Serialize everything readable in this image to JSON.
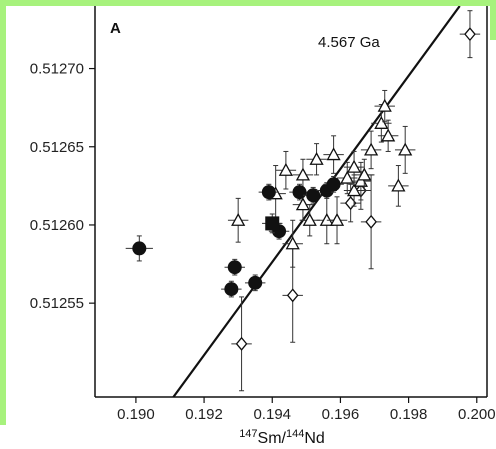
{
  "chart_data": {
    "type": "scatter",
    "panel_label": "A",
    "title": "",
    "xlabel_parts": {
      "sup1": "147",
      "mid": "Sm/",
      "sup2": "144",
      "end": "Nd"
    },
    "xlim": [
      0.1888,
      0.2003
    ],
    "ylim": [
      0.51249,
      0.51274
    ],
    "x_ticks": [
      0.19,
      0.192,
      0.194,
      0.196,
      0.198,
      0.2
    ],
    "x_tick_labels": [
      "0.190",
      "0.192",
      "0.194",
      "0.196",
      "0.198",
      "0.200"
    ],
    "y_ticks": [
      0.51255,
      0.5126,
      0.51265,
      0.5127
    ],
    "y_tick_labels": [
      "0.51255",
      "0.51260",
      "0.51265",
      "0.51270"
    ],
    "isochron": {
      "label": "4.567 Ga",
      "points": [
        [
          0.1911,
          0.51249
        ],
        [
          0.1995,
          0.51274
        ]
      ]
    },
    "series": [
      {
        "marker": "filled-circle",
        "points": [
          {
            "x": 0.1901,
            "y": 0.512585,
            "xerr": 0.0004,
            "yerr": 8e-06
          },
          {
            "x": 0.1929,
            "y": 0.512573,
            "xerr": 0.0003,
            "yerr": 5e-06
          },
          {
            "x": 0.1928,
            "y": 0.512559,
            "xerr": 0.0003,
            "yerr": 5e-06
          },
          {
            "x": 0.1935,
            "y": 0.512563,
            "xerr": 0.0003,
            "yerr": 5e-06
          },
          {
            "x": 0.1939,
            "y": 0.512621,
            "xerr": 0.0003,
            "yerr": 5e-06
          },
          {
            "x": 0.1942,
            "y": 0.512596,
            "xerr": 0.0003,
            "yerr": 5e-06
          },
          {
            "x": 0.1948,
            "y": 0.512621,
            "xerr": 0.0003,
            "yerr": 5e-06
          },
          {
            "x": 0.1952,
            "y": 0.512619,
            "xerr": 0.0003,
            "yerr": 5e-06
          },
          {
            "x": 0.1956,
            "y": 0.512622,
            "xerr": 0.0003,
            "yerr": 5e-06
          },
          {
            "x": 0.1958,
            "y": 0.512626,
            "xerr": 0.0003,
            "yerr": 5e-06
          }
        ]
      },
      {
        "marker": "filled-square",
        "points": [
          {
            "x": 0.194,
            "y": 0.512601,
            "xerr": 0.0003,
            "yerr": 6e-06
          }
        ]
      },
      {
        "marker": "open-triangle",
        "points": [
          {
            "x": 0.193,
            "y": 0.512603,
            "xerr": 0.0003,
            "yerr": 1.4e-05
          },
          {
            "x": 0.1941,
            "y": 0.51262,
            "xerr": 0.0003,
            "yerr": 1.8e-05
          },
          {
            "x": 0.1944,
            "y": 0.512635,
            "xerr": 0.0003,
            "yerr": 1.2e-05
          },
          {
            "x": 0.1946,
            "y": 0.512588,
            "xerr": 0.0003,
            "yerr": 1.5e-05
          },
          {
            "x": 0.1949,
            "y": 0.512613,
            "xerr": 0.0003,
            "yerr": 1e-05
          },
          {
            "x": 0.1949,
            "y": 0.512632,
            "xerr": 0.0003,
            "yerr": 1e-05
          },
          {
            "x": 0.1951,
            "y": 0.512603,
            "xerr": 0.0003,
            "yerr": 1e-05
          },
          {
            "x": 0.1953,
            "y": 0.512642,
            "xerr": 0.0003,
            "yerr": 1e-05
          },
          {
            "x": 0.1956,
            "y": 0.512603,
            "xerr": 0.0003,
            "yerr": 1.5e-05
          },
          {
            "x": 0.1958,
            "y": 0.512645,
            "xerr": 0.0003,
            "yerr": 1.2e-05
          },
          {
            "x": 0.1959,
            "y": 0.512603,
            "xerr": 0.0003,
            "yerr": 1.5e-05
          },
          {
            "x": 0.1962,
            "y": 0.51263,
            "xerr": 0.0003,
            "yerr": 1e-05
          },
          {
            "x": 0.1964,
            "y": 0.512637,
            "xerr": 0.0003,
            "yerr": 1e-05
          },
          {
            "x": 0.1964,
            "y": 0.512622,
            "xerr": 0.0003,
            "yerr": 1e-05
          },
          {
            "x": 0.1966,
            "y": 0.512628,
            "xerr": 0.0003,
            "yerr": 1.2e-05
          },
          {
            "x": 0.1967,
            "y": 0.512632,
            "xerr": 0.0003,
            "yerr": 1e-05
          },
          {
            "x": 0.1969,
            "y": 0.512648,
            "xerr": 0.0003,
            "yerr": 1.2e-05
          },
          {
            "x": 0.1972,
            "y": 0.512665,
            "xerr": 0.0003,
            "yerr": 1.2e-05
          },
          {
            "x": 0.1973,
            "y": 0.512676,
            "xerr": 0.0003,
            "yerr": 1e-05
          },
          {
            "x": 0.1974,
            "y": 0.512657,
            "xerr": 0.0003,
            "yerr": 1e-05
          },
          {
            "x": 0.1977,
            "y": 0.512625,
            "xerr": 0.0003,
            "yerr": 1.3e-05
          },
          {
            "x": 0.1979,
            "y": 0.512648,
            "xerr": 0.0003,
            "yerr": 1.5e-05
          }
        ]
      },
      {
        "marker": "open-diamond",
        "points": [
          {
            "x": 0.1931,
            "y": 0.512524,
            "xerr": 0.0003,
            "yerr": 3e-05
          },
          {
            "x": 0.1946,
            "y": 0.512555,
            "xerr": 0.0003,
            "yerr": 3e-05
          },
          {
            "x": 0.1963,
            "y": 0.512614,
            "xerr": 0.0003,
            "yerr": 1.2e-05
          },
          {
            "x": 0.1966,
            "y": 0.512622,
            "xerr": 0.0003,
            "yerr": 1.2e-05
          },
          {
            "x": 0.1969,
            "y": 0.512602,
            "xerr": 0.0003,
            "yerr": 3e-05
          },
          {
            "x": 0.1998,
            "y": 0.512722,
            "xerr": 0.0003,
            "yerr": 1.5e-05
          }
        ]
      }
    ],
    "grid": false,
    "legend": "none"
  }
}
